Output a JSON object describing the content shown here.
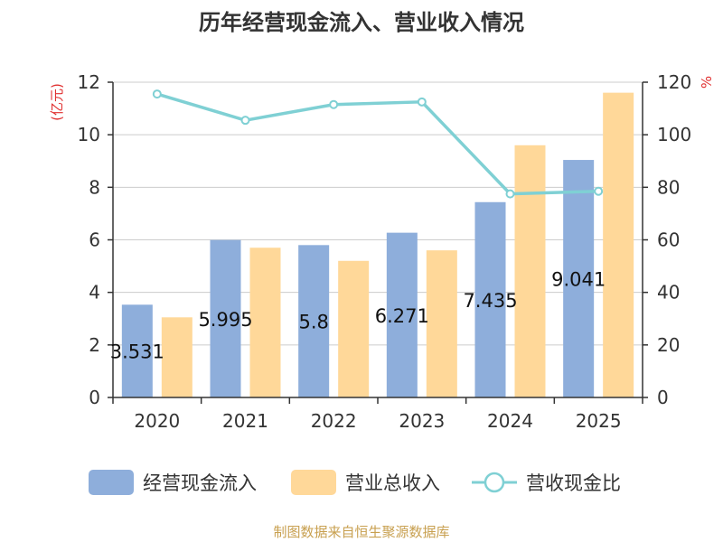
{
  "chart_data": {
    "type": "bar",
    "title": "历年经营现金流入、营业收入情况",
    "categories": [
      "2020",
      "2021",
      "2022",
      "2023",
      "2024",
      "2025"
    ],
    "series": [
      {
        "name": "经营现金流入",
        "axis": "left",
        "color": "#8eaedb",
        "values": [
          3.531,
          5.995,
          5.8,
          6.271,
          7.435,
          9.041
        ],
        "labels": [
          "3.531",
          "5.995",
          "5.8",
          "6.271",
          "7.435",
          "9.041"
        ]
      },
      {
        "name": "营业总收入",
        "axis": "left",
        "color": "#ffd899",
        "values": [
          3.05,
          5.7,
          5.2,
          5.6,
          9.6,
          11.6
        ]
      },
      {
        "name": "营收现金比",
        "axis": "right",
        "type": "line",
        "color": "#7fd0d4",
        "values": [
          115.5,
          105.5,
          111.5,
          112.5,
          77.5,
          78.5
        ]
      }
    ],
    "y_left": {
      "label": "(亿元)",
      "min": 0,
      "max": 12,
      "ticks": [
        0,
        2,
        4,
        6,
        8,
        10,
        12
      ]
    },
    "y_right": {
      "label": "%",
      "min": 0,
      "max": 120,
      "ticks": [
        0,
        20,
        40,
        60,
        80,
        100,
        120
      ]
    },
    "grid": true,
    "legend_position": "bottom",
    "unit_color": "#e03030"
  },
  "source": {
    "text": "制图数据来自恒生聚源数据库",
    "color": "#c8a050"
  }
}
